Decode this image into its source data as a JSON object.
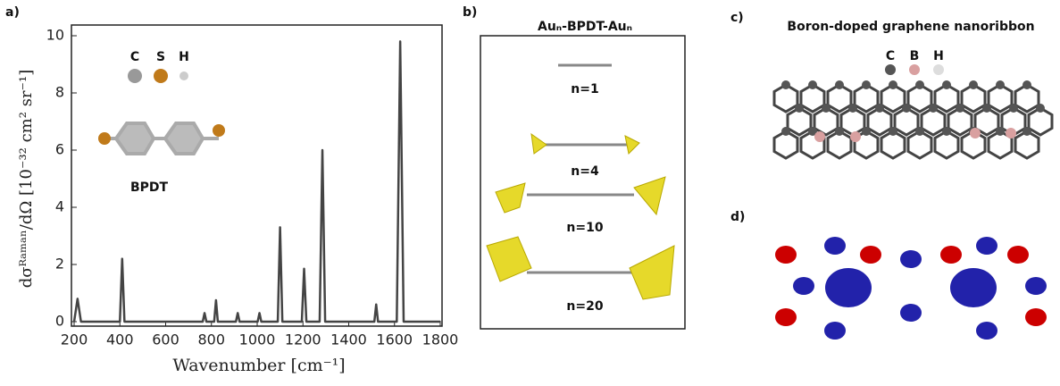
{
  "chart_data": {
    "type": "line",
    "panel": "a)",
    "xlabel": "Wavenumber [cm⁻¹]",
    "ylabel": "dσᴿᵃᵐᵃⁿ/dΩ [10⁻³² cm² sr⁻¹]",
    "x": [
      200,
      215,
      230,
      400,
      410,
      420,
      762,
      770,
      778,
      812,
      820,
      828,
      907,
      915,
      923,
      1002,
      1010,
      1018,
      1090,
      1100,
      1110,
      1195,
      1205,
      1215,
      1273,
      1285,
      1297,
      1512,
      1520,
      1528,
      1610,
      1625,
      1640,
      1800
    ],
    "values": [
      0,
      0.8,
      0,
      0,
      2.2,
      0,
      0,
      0.3,
      0,
      0,
      0.75,
      0,
      0,
      0.3,
      0,
      0,
      0.3,
      0,
      0,
      3.3,
      0,
      0,
      1.85,
      0,
      0,
      6.0,
      0,
      0,
      0.6,
      0,
      0,
      9.8,
      0,
      0
    ],
    "color": "#444444",
    "xlim": [
      200,
      1800
    ],
    "xticks": [
      200,
      400,
      600,
      800,
      1000,
      1200,
      1400,
      1600,
      1800
    ],
    "ylim": [
      0,
      10
    ],
    "yticks": [
      0,
      2,
      4,
      6,
      8,
      10
    ],
    "inset": {
      "atoms": [
        "C",
        "S",
        "H"
      ],
      "molecule": "BPDT"
    }
  },
  "panel_b": {
    "label": "b)",
    "title": "Auₙ-BPDT-Auₙ",
    "items": [
      "n=1",
      "n=4",
      "n=10",
      "n=20"
    ]
  },
  "panel_c": {
    "label": "c)",
    "title": "Boron-doped graphene nanoribbon",
    "atoms": [
      "C",
      "B",
      "H"
    ]
  },
  "panel_d": {
    "label": "d)"
  }
}
